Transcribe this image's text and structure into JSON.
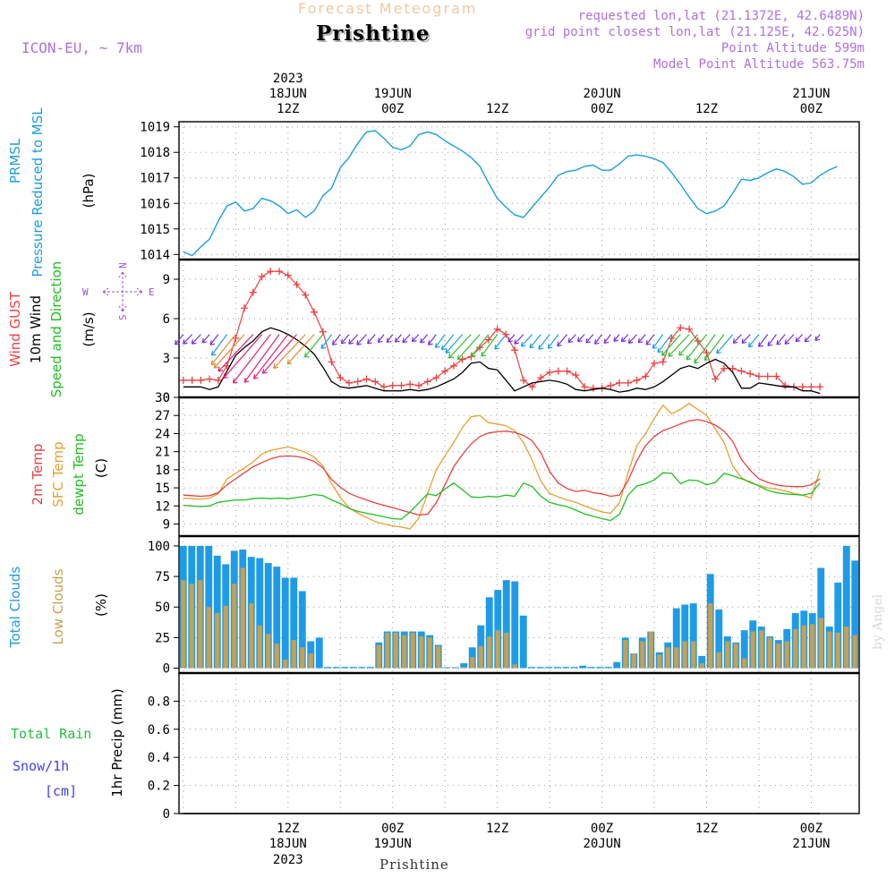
{
  "header": {
    "forecast_title": "Forecast Meteogram",
    "location": "Prishtine",
    "model": "ICON-EU, ~ 7km",
    "requested": "requested lon,lat (21.1372E, 42.6489N)",
    "closest": "grid point closest lon,lat (21.125E, 42.625N)",
    "point_alt": "Point Altitude 599m",
    "model_alt": "Model Point Altitude 563.75m",
    "footer_location": "Prishtine",
    "watermark": "by Angel"
  },
  "time_axis": {
    "top": [
      {
        "l1": "2023",
        "l2": "18JUN",
        "l3": "12Z",
        "t": 12
      },
      {
        "l1": "",
        "l2": "19JUN",
        "l3": "00Z",
        "t": 24
      },
      {
        "l1": "",
        "l2": "",
        "l3": "12Z",
        "t": 36
      },
      {
        "l1": "",
        "l2": "20JUN",
        "l3": "00Z",
        "t": 48
      },
      {
        "l1": "",
        "l2": "",
        "l3": "12Z",
        "t": 60
      },
      {
        "l1": "",
        "l2": "21JUN",
        "l3": "00Z",
        "t": 72
      }
    ],
    "bottom": [
      {
        "l1": "12Z",
        "l2": "18JUN",
        "l3": "2023",
        "t": 12
      },
      {
        "l1": "00Z",
        "l2": "19JUN",
        "l3": "",
        "t": 24
      },
      {
        "l1": "12Z",
        "l2": "",
        "l3": "",
        "t": 36
      },
      {
        "l1": "00Z",
        "l2": "20JUN",
        "l3": "",
        "t": 48
      },
      {
        "l1": "12Z",
        "l2": "",
        "l3": "",
        "t": 60
      },
      {
        "l1": "00Z",
        "l2": "21JUN",
        "l3": "",
        "t": 72
      }
    ]
  },
  "labels": {
    "pressure": [
      "PRMSL",
      "Pressure Reduced to MSL",
      "(hPa)"
    ],
    "wind": [
      "Wind GUST",
      "10m Wind",
      "Speed and Direction",
      "(m/s)"
    ],
    "compass": {
      "n": "N",
      "s": "S",
      "w": "W",
      "e": "E"
    },
    "temp": [
      "2m Temp",
      "SFC Temp",
      "dewpt Temp",
      "(C)"
    ],
    "clouds": [
      "Total Clouds",
      "Low Clouds",
      "(%)"
    ],
    "precip": [
      "Total  Rain",
      "Snow/1h",
      "[cm]",
      "1hr Precip (mm)"
    ]
  },
  "colors": {
    "pressure": "#1a9ee0",
    "gust": "#f04040",
    "wind": "#000000",
    "t2m": "#e84040",
    "sfc": "#e8a030",
    "dew": "#20c020",
    "total_cloud": "#1e9be8",
    "low_cloud": "#c8a050",
    "purple": "#a050d8",
    "rain": "#20c040",
    "snow": "#4040f0"
  },
  "chart_data": [
    {
      "type": "line",
      "title": "PRMSL Pressure Reduced to MSL",
      "ylabel": "(hPa)",
      "ylim": [
        1013.8,
        1019.2
      ],
      "yticks": [
        1014,
        1015,
        1016,
        1017,
        1018,
        1019
      ],
      "series": [
        {
          "name": "PRMSL",
          "values": [
            1014.1,
            1013.95,
            1014.3,
            1014.6,
            1015.3,
            1015.9,
            1016.05,
            1015.7,
            1015.8,
            1016.2,
            1016.1,
            1015.9,
            1015.6,
            1015.75,
            1015.45,
            1015.7,
            1016.3,
            1016.6,
            1017.4,
            1017.8,
            1018.35,
            1018.8,
            1018.85,
            1018.55,
            1018.2,
            1018.1,
            1018.25,
            1018.7,
            1018.8,
            1018.7,
            1018.45,
            1018.25,
            1018.05,
            1017.8,
            1017.45,
            1016.8,
            1016.2,
            1015.85,
            1015.55,
            1015.45,
            1015.85,
            1016.25,
            1016.65,
            1017.1,
            1017.25,
            1017.3,
            1017.45,
            1017.5,
            1017.3,
            1017.3,
            1017.55,
            1017.85,
            1017.9,
            1017.85,
            1017.75,
            1017.6,
            1017.2,
            1016.75,
            1016.25,
            1015.8,
            1015.6,
            1015.7,
            1015.9,
            1016.4,
            1016.95,
            1016.9,
            1017.0,
            1017.2,
            1017.35,
            1017.25,
            1017.05,
            1016.75,
            1016.8,
            1017.1,
            1017.3,
            1017.45
          ]
        }
      ]
    },
    {
      "type": "line",
      "title": "Wind GUST / 10m Wind Speed and Direction",
      "ylabel": "(m/s)",
      "ylim": [
        0,
        10.5
      ],
      "yticks": [
        0,
        3,
        6,
        9
      ],
      "series": [
        {
          "name": "Wind GUST",
          "values": [
            1.3,
            1.3,
            1.3,
            1.4,
            1.3,
            2.4,
            4.5,
            6.8,
            8.0,
            9.2,
            9.6,
            9.6,
            9.3,
            8.6,
            7.8,
            6.5,
            5.0,
            2.7,
            1.5,
            1.1,
            1.2,
            1.4,
            1.2,
            0.8,
            0.9,
            0.9,
            1.0,
            0.9,
            1.2,
            1.5,
            2.0,
            2.4,
            2.9,
            3.1,
            3.8,
            4.4,
            5.2,
            4.8,
            3.6,
            1.3,
            0.8,
            1.5,
            1.9,
            2.0,
            2.0,
            1.7,
            0.8,
            0.7,
            0.7,
            0.9,
            1.1,
            1.1,
            1.3,
            1.6,
            2.6,
            2.7,
            4.5,
            5.3,
            5.2,
            4.3,
            3.4,
            1.4,
            2.2,
            2.2,
            2.0,
            1.8,
            1.6,
            1.6,
            1.6,
            0.9,
            0.8,
            0.8,
            0.8,
            0.8
          ]
        },
        {
          "name": "10m Wind",
          "values": [
            0.8,
            0.8,
            0.8,
            0.6,
            0.8,
            2.0,
            3.2,
            3.8,
            4.3,
            5.0,
            5.3,
            5.1,
            4.8,
            4.4,
            3.9,
            3.3,
            2.3,
            1.2,
            0.8,
            0.7,
            0.8,
            0.9,
            0.7,
            0.5,
            0.5,
            0.5,
            0.6,
            0.5,
            0.6,
            0.8,
            1.1,
            1.4,
            1.9,
            2.6,
            2.7,
            2.2,
            2.1,
            1.3,
            0.5,
            0.8,
            1.1,
            1.2,
            1.3,
            1.2,
            1.0,
            0.6,
            0.5,
            0.6,
            0.7,
            0.6,
            0.4,
            0.5,
            0.7,
            0.6,
            0.8,
            1.2,
            1.7,
            2.2,
            2.4,
            2.2,
            2.6,
            2.9,
            2.6,
            1.9,
            0.7,
            0.7,
            1.1,
            1.0,
            0.9,
            0.8,
            0.8,
            0.5,
            0.5,
            0.3
          ]
        }
      ]
    },
    {
      "type": "line",
      "title": "2m Temp / SFC Temp / dewpt Temp",
      "ylabel": "(C)",
      "ylim": [
        7,
        30
      ],
      "yticks": [
        9,
        12,
        15,
        18,
        21,
        24,
        27,
        30
      ],
      "series": [
        {
          "name": "2m Temp",
          "values": [
            13.8,
            13.7,
            13.6,
            13.7,
            14.2,
            15.5,
            16.5,
            17.5,
            18.5,
            19.2,
            19.8,
            20.2,
            20.3,
            20.2,
            19.9,
            19.4,
            18.3,
            16.4,
            15.1,
            14.1,
            13.5,
            13.0,
            12.5,
            12.1,
            11.7,
            11.3,
            10.9,
            10.5,
            10.6,
            12.5,
            15.5,
            18.5,
            20.5,
            22.3,
            23.5,
            24.1,
            24.3,
            24.4,
            24.2,
            23.7,
            22.8,
            20.8,
            17.7,
            15.8,
            14.9,
            14.4,
            14.6,
            14.2,
            14.0,
            13.6,
            13.8,
            16.2,
            19.5,
            22.0,
            23.5,
            24.5,
            25.0,
            25.6,
            26.1,
            26.3,
            26.0,
            25.4,
            24.4,
            22.7,
            19.7,
            17.9,
            16.5,
            15.9,
            15.5,
            15.3,
            15.2,
            15.2,
            15.5,
            16.5
          ]
        },
        {
          "name": "SFC Temp",
          "values": [
            13.3,
            13.2,
            13.1,
            13.3,
            14.0,
            16.5,
            17.4,
            18.3,
            19.3,
            20.6,
            21.2,
            21.5,
            21.8,
            21.4,
            20.9,
            20.1,
            18.6,
            15.7,
            13.4,
            11.7,
            10.8,
            10.1,
            9.4,
            9.0,
            8.7,
            8.5,
            8.2,
            10.0,
            14.0,
            18.0,
            20.3,
            22.5,
            25.0,
            26.8,
            27.0,
            25.8,
            25.6,
            25.3,
            24.5,
            22.5,
            19.6,
            16.1,
            14.1,
            13.5,
            13.0,
            12.6,
            12.0,
            11.5,
            11.0,
            10.8,
            12.5,
            17.5,
            22.0,
            24.0,
            26.5,
            28.7,
            27.3,
            28.0,
            29.0,
            28.0,
            27.0,
            24.8,
            22.5,
            18.6,
            16.7,
            15.8,
            15.4,
            15.0,
            14.8,
            14.5,
            14.1,
            13.8,
            13.3,
            17.9
          ]
        },
        {
          "name": "dewpt Temp",
          "values": [
            12.1,
            12.0,
            11.9,
            12.0,
            12.6,
            12.8,
            13.0,
            13.0,
            13.2,
            13.3,
            13.2,
            13.3,
            13.2,
            13.4,
            13.6,
            13.9,
            13.7,
            13.0,
            12.4,
            11.6,
            11.1,
            10.8,
            10.5,
            10.2,
            9.9,
            9.8,
            11.0,
            12.5,
            14.0,
            13.7,
            14.8,
            15.8,
            14.7,
            13.5,
            13.4,
            13.6,
            13.5,
            13.8,
            13.6,
            15.8,
            15.2,
            13.6,
            12.6,
            12.2,
            11.9,
            11.3,
            10.7,
            10.3,
            9.9,
            9.6,
            10.6,
            13.8,
            15.3,
            15.7,
            16.3,
            17.5,
            17.4,
            15.7,
            16.3,
            16.2,
            15.5,
            15.9,
            17.4,
            17.0,
            16.5,
            16.0,
            15.3,
            14.6,
            14.2,
            14.0,
            13.9,
            13.8,
            14.1,
            15.8
          ]
        }
      ]
    },
    {
      "type": "bar",
      "title": "Total Clouds / Low Clouds",
      "ylabel": "(%)",
      "ylim": [
        -4,
        108
      ],
      "yticks": [
        0,
        25,
        50,
        75,
        100
      ],
      "series": [
        {
          "name": "Total Clouds",
          "values": [
            100,
            100,
            100,
            100,
            92,
            85,
            96,
            97,
            91,
            90,
            86,
            83,
            74,
            74,
            63,
            22,
            25,
            1,
            1,
            1,
            1,
            1,
            1,
            21,
            30,
            30,
            30,
            30,
            30,
            27,
            19,
            0,
            0,
            4,
            17,
            35,
            58,
            64,
            72,
            71,
            43,
            1,
            1,
            1,
            1,
            1,
            1,
            2,
            1,
            1,
            1,
            5,
            25,
            12,
            25,
            30,
            13,
            21,
            49,
            52,
            53,
            10,
            77,
            48,
            26,
            21,
            31,
            39,
            34,
            26,
            23,
            32,
            45,
            47,
            45,
            82,
            34,
            70,
            100,
            88
          ]
        },
        {
          "name": "Low Clouds",
          "values": [
            72,
            69,
            72,
            50,
            45,
            51,
            69,
            82,
            53,
            35,
            28,
            20,
            7,
            23,
            17,
            12,
            0,
            0,
            0,
            0,
            0,
            0,
            0,
            19,
            29,
            29,
            27,
            29,
            26,
            25,
            18,
            0,
            0,
            1,
            9,
            18,
            26,
            31,
            29,
            3,
            0,
            0,
            0,
            0,
            0,
            0,
            0,
            0,
            0,
            0,
            0,
            0,
            23,
            12,
            22,
            30,
            11,
            17,
            17,
            22,
            22,
            4,
            53,
            13,
            22,
            20,
            8,
            30,
            31,
            25,
            20,
            22,
            32,
            35,
            36,
            41,
            30,
            29,
            34,
            27
          ]
        }
      ]
    },
    {
      "type": "line",
      "title": "Total Rain / Snow/1h [cm]",
      "ylabel": "1hr Precip (mm)",
      "ylim": [
        0,
        1
      ],
      "yticks": [
        0,
        0.2,
        0.4,
        0.6,
        0.8
      ],
      "series": [
        {
          "name": "Total Rain",
          "values": [
            0,
            0,
            0,
            0,
            0,
            0,
            0,
            0,
            0,
            0,
            0,
            0,
            0,
            0,
            0,
            0,
            0,
            0,
            0,
            0,
            0,
            0,
            0,
            0,
            0,
            0,
            0,
            0,
            0,
            0,
            0,
            0,
            0,
            0,
            0,
            0,
            0,
            0,
            0,
            0,
            0,
            0,
            0,
            0,
            0,
            0,
            0,
            0,
            0,
            0,
            0,
            0,
            0,
            0,
            0,
            0,
            0,
            0,
            0,
            0,
            0,
            0,
            0,
            0,
            0,
            0,
            0,
            0,
            0,
            0,
            0,
            0,
            0,
            0
          ]
        }
      ]
    }
  ]
}
